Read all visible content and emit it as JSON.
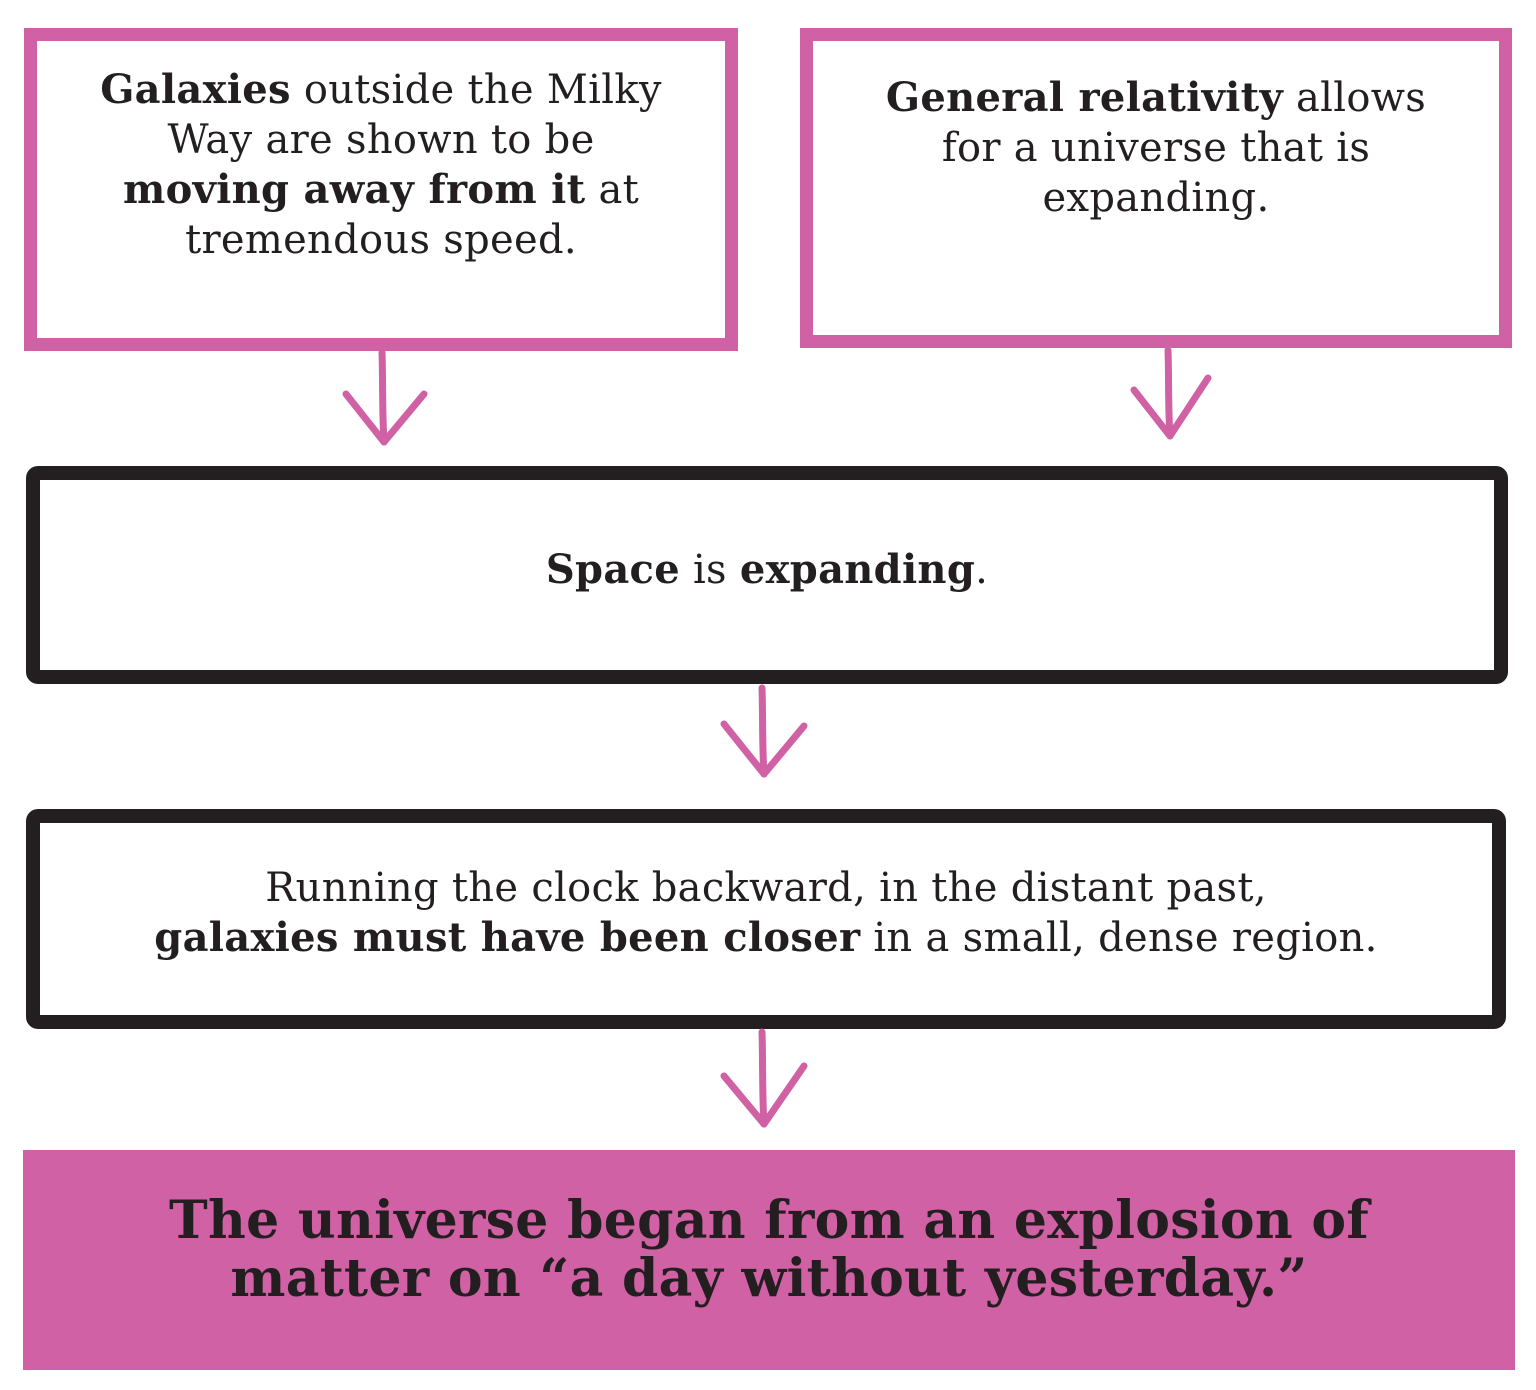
{
  "colors": {
    "accent_pink": "#cf61a4",
    "outline_black": "#231f20",
    "background": "#ffffff"
  },
  "nodes": {
    "galaxies": {
      "bold1": "Galaxies",
      "text1": " outside the Milky Way are shown to be ",
      "bold2": "moving away from it",
      "text2": " at tremendous speed."
    },
    "relativity": {
      "bold1": "General relativity",
      "text1": " allows for a universe that is expanding."
    },
    "space": {
      "bold1": "Space",
      "text1": " is ",
      "bold2": "expanding",
      "text2": "."
    },
    "closer": {
      "text1": "Running the clock backward, in the distant past, ",
      "bold1": "galaxies must have been closer",
      "text2": " in a small, dense region."
    },
    "conclusion": {
      "text": "The universe began from an explosion of matter on “a day without yesterday.”"
    }
  },
  "edges": [
    {
      "from": "galaxies",
      "to": "space",
      "icon": "down-arrow-icon"
    },
    {
      "from": "relativity",
      "to": "space",
      "icon": "down-arrow-icon"
    },
    {
      "from": "space",
      "to": "closer",
      "icon": "down-arrow-icon"
    },
    {
      "from": "closer",
      "to": "conclusion",
      "icon": "down-arrow-icon"
    }
  ]
}
